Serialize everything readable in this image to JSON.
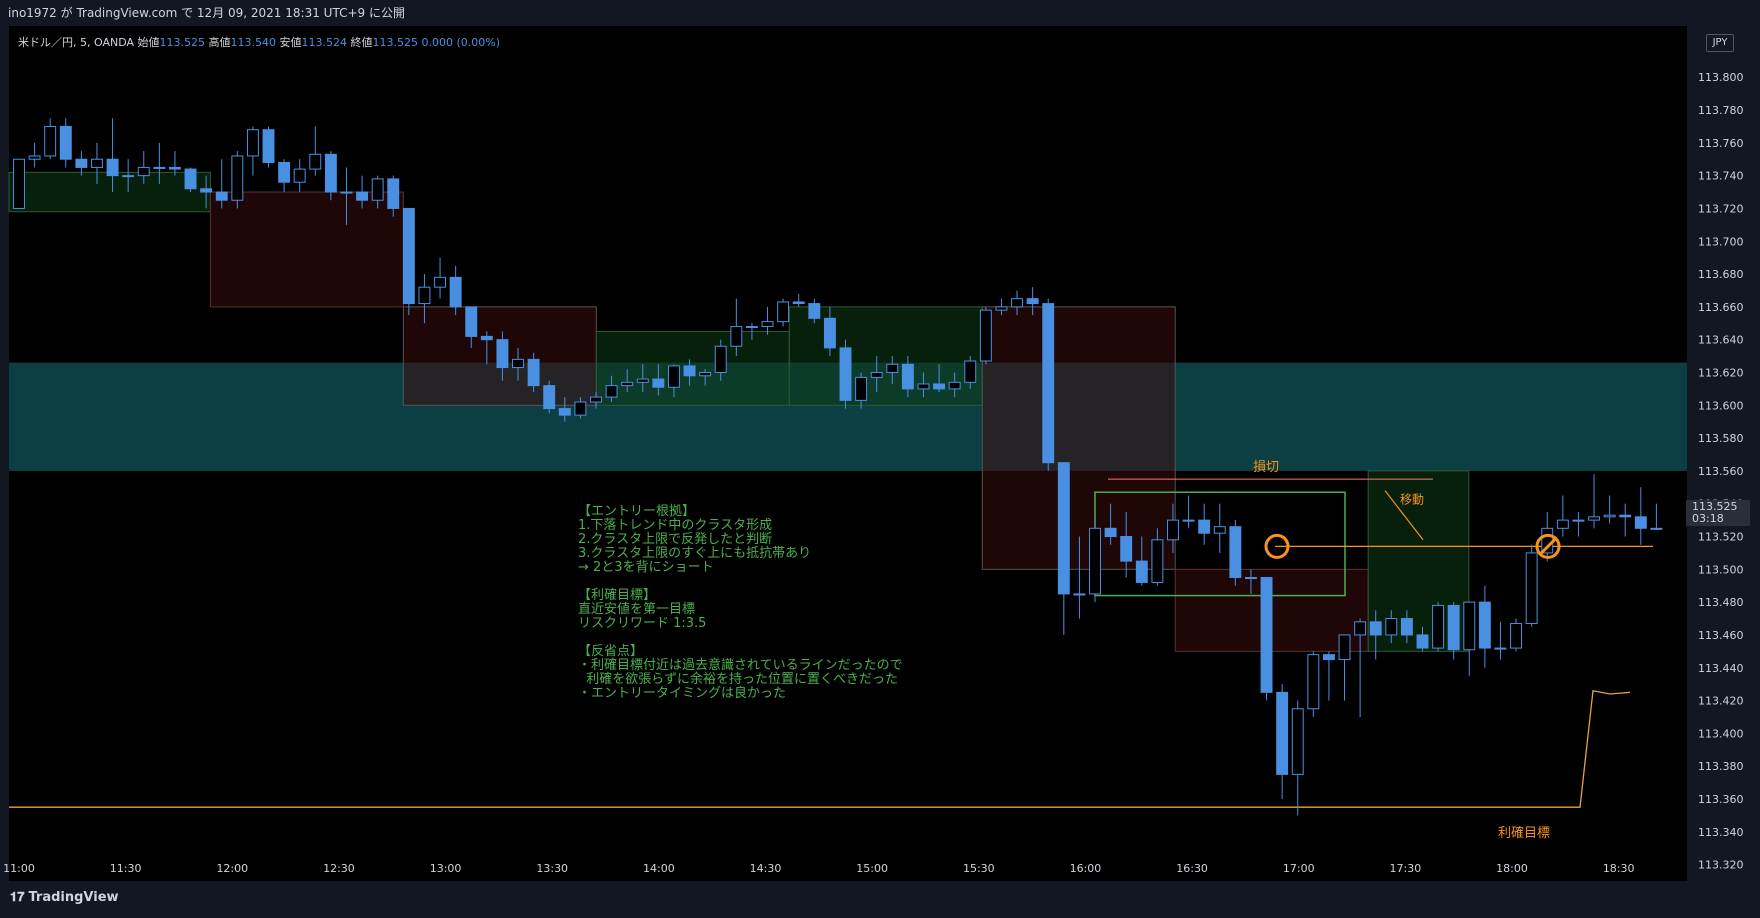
{
  "header": {
    "publish_info": "ino1972 が TradingView.com で 12月 09, 2021 18:31 UTC+9 に公開"
  },
  "legend": {
    "symbol": "米ドル／円, 5, OANDA",
    "open_label": "始値",
    "open": "113.525",
    "high_label": "高値",
    "high": "113.540",
    "low_label": "安値",
    "low": "113.524",
    "close_label": "終値",
    "close": "113.525",
    "change": "0.000 (0.00%)"
  },
  "currency": "JPY",
  "price_tag": {
    "price": "113.525",
    "countdown": "03:18"
  },
  "annotations": {
    "stop_loss": "損切",
    "move": "移動",
    "take_profit": "利確目標",
    "note_lines": [
      "【エントリー根拠】",
      "1.下落トレンド中のクラスタ形成",
      "2.クラスタ上限で反発したと判断",
      "3.クラスタ上限のすぐ上にも抵抗帯あり",
      "→ 2と3を背にショート",
      "",
      "【利確目標】",
      "直近安値を第一目標",
      "リスクリワード 1:3.5",
      "",
      "【反省点】",
      "・利確目標付近は過去意識されているラインだったので",
      "  利確を欲張らずに余裕を持った位置に置くべきだった",
      "・エントリータイミングは良かった"
    ]
  },
  "footer": {
    "brand": "TradingView"
  },
  "colors": {
    "up": "#000000",
    "down": "#4a90e2",
    "wick": "#4a90e2",
    "zone": "#0e4a4f",
    "take_profit_line": "#e8a23a",
    "orange": "#f7931a",
    "green_box": "#4caf50",
    "note": "#4caf50"
  },
  "chart_data": {
    "type": "candlestick",
    "symbol": "米ドル／円, 5, OANDA",
    "interval_minutes": 5,
    "y_axis": {
      "range": [
        113.31,
        113.83
      ],
      "ticks": [
        "113.800",
        "113.780",
        "113.760",
        "113.740",
        "113.720",
        "113.700",
        "113.680",
        "113.660",
        "113.640",
        "113.620",
        "113.600",
        "113.580",
        "113.560",
        "113.540",
        "113.520",
        "113.500",
        "113.480",
        "113.460",
        "113.440",
        "113.420",
        "113.400",
        "113.380",
        "113.360",
        "113.340",
        "113.320"
      ]
    },
    "x_axis": {
      "ticks": [
        "11:00",
        "11:30",
        "12:00",
        "12:30",
        "13:00",
        "13:30",
        "14:00",
        "14:30",
        "15:00",
        "15:30",
        "16:00",
        "16:30",
        "17:00",
        "17:30",
        "18:00",
        "18:30"
      ]
    },
    "candles": [
      {
        "o": 113.72,
        "h": 113.75,
        "l": 113.72,
        "c": 113.75
      },
      {
        "o": 113.75,
        "h": 113.76,
        "l": 113.745,
        "c": 113.752
      },
      {
        "o": 113.752,
        "h": 113.775,
        "l": 113.75,
        "c": 113.77
      },
      {
        "o": 113.77,
        "h": 113.775,
        "l": 113.745,
        "c": 113.75
      },
      {
        "o": 113.75,
        "h": 113.755,
        "l": 113.74,
        "c": 113.745
      },
      {
        "o": 113.745,
        "h": 113.76,
        "l": 113.735,
        "c": 113.75
      },
      {
        "o": 113.75,
        "h": 113.775,
        "l": 113.73,
        "c": 113.74
      },
      {
        "o": 113.74,
        "h": 113.75,
        "l": 113.73,
        "c": 113.74
      },
      {
        "o": 113.74,
        "h": 113.755,
        "l": 113.735,
        "c": 113.745
      },
      {
        "o": 113.745,
        "h": 113.76,
        "l": 113.735,
        "c": 113.745
      },
      {
        "o": 113.745,
        "h": 113.755,
        "l": 113.74,
        "c": 113.744
      },
      {
        "o": 113.744,
        "h": 113.745,
        "l": 113.73,
        "c": 113.732
      },
      {
        "o": 113.732,
        "h": 113.74,
        "l": 113.72,
        "c": 113.73
      },
      {
        "o": 113.73,
        "h": 113.75,
        "l": 113.72,
        "c": 113.725
      },
      {
        "o": 113.725,
        "h": 113.755,
        "l": 113.72,
        "c": 113.752
      },
      {
        "o": 113.752,
        "h": 113.77,
        "l": 113.74,
        "c": 113.768
      },
      {
        "o": 113.768,
        "h": 113.77,
        "l": 113.745,
        "c": 113.748
      },
      {
        "o": 113.748,
        "h": 113.75,
        "l": 113.73,
        "c": 113.736
      },
      {
        "o": 113.736,
        "h": 113.75,
        "l": 113.73,
        "c": 113.744
      },
      {
        "o": 113.744,
        "h": 113.77,
        "l": 113.74,
        "c": 113.753
      },
      {
        "o": 113.753,
        "h": 113.755,
        "l": 113.725,
        "c": 113.73
      },
      {
        "o": 113.73,
        "h": 113.745,
        "l": 113.71,
        "c": 113.73
      },
      {
        "o": 113.73,
        "h": 113.74,
        "l": 113.72,
        "c": 113.725
      },
      {
        "o": 113.725,
        "h": 113.74,
        "l": 113.72,
        "c": 113.738
      },
      {
        "o": 113.738,
        "h": 113.74,
        "l": 113.715,
        "c": 113.72
      },
      {
        "o": 113.72,
        "h": 113.72,
        "l": 113.655,
        "c": 113.662
      },
      {
        "o": 113.662,
        "h": 113.68,
        "l": 113.65,
        "c": 113.672
      },
      {
        "o": 113.672,
        "h": 113.69,
        "l": 113.665,
        "c": 113.678
      },
      {
        "o": 113.678,
        "h": 113.685,
        "l": 113.655,
        "c": 113.66
      },
      {
        "o": 113.66,
        "h": 113.66,
        "l": 113.635,
        "c": 113.642
      },
      {
        "o": 113.642,
        "h": 113.645,
        "l": 113.625,
        "c": 113.64
      },
      {
        "o": 113.64,
        "h": 113.645,
        "l": 113.615,
        "c": 113.623
      },
      {
        "o": 113.623,
        "h": 113.635,
        "l": 113.615,
        "c": 113.628
      },
      {
        "o": 113.628,
        "h": 113.632,
        "l": 113.608,
        "c": 113.612
      },
      {
        "o": 113.612,
        "h": 113.615,
        "l": 113.595,
        "c": 113.598
      },
      {
        "o": 113.598,
        "h": 113.605,
        "l": 113.59,
        "c": 113.594
      },
      {
        "o": 113.594,
        "h": 113.605,
        "l": 113.592,
        "c": 113.602
      },
      {
        "o": 113.602,
        "h": 113.608,
        "l": 113.598,
        "c": 113.605
      },
      {
        "o": 113.605,
        "h": 113.618,
        "l": 113.602,
        "c": 113.612
      },
      {
        "o": 113.612,
        "h": 113.622,
        "l": 113.608,
        "c": 113.614
      },
      {
        "o": 113.614,
        "h": 113.625,
        "l": 113.608,
        "c": 113.616
      },
      {
        "o": 113.616,
        "h": 113.625,
        "l": 113.606,
        "c": 113.611
      },
      {
        "o": 113.611,
        "h": 113.625,
        "l": 113.605,
        "c": 113.624
      },
      {
        "o": 113.624,
        "h": 113.628,
        "l": 113.612,
        "c": 113.618
      },
      {
        "o": 113.618,
        "h": 113.622,
        "l": 113.612,
        "c": 113.62
      },
      {
        "o": 113.62,
        "h": 113.64,
        "l": 113.615,
        "c": 113.636
      },
      {
        "o": 113.636,
        "h": 113.665,
        "l": 113.63,
        "c": 113.648
      },
      {
        "o": 113.648,
        "h": 113.65,
        "l": 113.64,
        "c": 113.648
      },
      {
        "o": 113.648,
        "h": 113.66,
        "l": 113.643,
        "c": 113.651
      },
      {
        "o": 113.651,
        "h": 113.665,
        "l": 113.648,
        "c": 113.663
      },
      {
        "o": 113.663,
        "h": 113.668,
        "l": 113.66,
        "c": 113.662
      },
      {
        "o": 113.662,
        "h": 113.665,
        "l": 113.65,
        "c": 113.653
      },
      {
        "o": 113.653,
        "h": 113.66,
        "l": 113.63,
        "c": 113.635
      },
      {
        "o": 113.635,
        "h": 113.64,
        "l": 113.598,
        "c": 113.603
      },
      {
        "o": 113.603,
        "h": 113.62,
        "l": 113.598,
        "c": 113.617
      },
      {
        "o": 113.617,
        "h": 113.63,
        "l": 113.608,
        "c": 113.62
      },
      {
        "o": 113.62,
        "h": 113.63,
        "l": 113.613,
        "c": 113.625
      },
      {
        "o": 113.625,
        "h": 113.63,
        "l": 113.605,
        "c": 113.61
      },
      {
        "o": 113.61,
        "h": 113.62,
        "l": 113.605,
        "c": 113.613
      },
      {
        "o": 113.613,
        "h": 113.625,
        "l": 113.608,
        "c": 113.61
      },
      {
        "o": 113.61,
        "h": 113.62,
        "l": 113.605,
        "c": 113.614
      },
      {
        "o": 113.614,
        "h": 113.63,
        "l": 113.61,
        "c": 113.627
      },
      {
        "o": 113.627,
        "h": 113.66,
        "l": 113.625,
        "c": 113.658
      },
      {
        "o": 113.658,
        "h": 113.665,
        "l": 113.655,
        "c": 113.66
      },
      {
        "o": 113.66,
        "h": 113.67,
        "l": 113.655,
        "c": 113.665
      },
      {
        "o": 113.665,
        "h": 113.672,
        "l": 113.655,
        "c": 113.662
      },
      {
        "o": 113.662,
        "h": 113.665,
        "l": 113.56,
        "c": 113.565
      },
      {
        "o": 113.565,
        "h": 113.565,
        "l": 113.46,
        "c": 113.485
      },
      {
        "o": 113.485,
        "h": 113.52,
        "l": 113.47,
        "c": 113.485
      },
      {
        "o": 113.485,
        "h": 113.53,
        "l": 113.48,
        "c": 113.525
      },
      {
        "o": 113.525,
        "h": 113.54,
        "l": 113.515,
        "c": 113.52
      },
      {
        "o": 113.52,
        "h": 113.535,
        "l": 113.495,
        "c": 113.505
      },
      {
        "o": 113.505,
        "h": 113.52,
        "l": 113.49,
        "c": 113.492
      },
      {
        "o": 113.492,
        "h": 113.525,
        "l": 113.49,
        "c": 113.518
      },
      {
        "o": 113.518,
        "h": 113.54,
        "l": 113.51,
        "c": 113.53
      },
      {
        "o": 113.53,
        "h": 113.545,
        "l": 113.525,
        "c": 113.53
      },
      {
        "o": 113.53,
        "h": 113.54,
        "l": 113.515,
        "c": 113.522
      },
      {
        "o": 113.522,
        "h": 113.54,
        "l": 113.51,
        "c": 113.526
      },
      {
        "o": 113.526,
        "h": 113.53,
        "l": 113.49,
        "c": 113.495
      },
      {
        "o": 113.495,
        "h": 113.5,
        "l": 113.485,
        "c": 113.495
      },
      {
        "o": 113.495,
        "h": 113.495,
        "l": 113.42,
        "c": 113.425
      },
      {
        "o": 113.425,
        "h": 113.43,
        "l": 113.36,
        "c": 113.375
      },
      {
        "o": 113.375,
        "h": 113.42,
        "l": 113.35,
        "c": 113.415
      },
      {
        "o": 113.415,
        "h": 113.45,
        "l": 113.41,
        "c": 113.448
      },
      {
        "o": 113.448,
        "h": 113.45,
        "l": 113.42,
        "c": 113.445
      },
      {
        "o": 113.445,
        "h": 113.46,
        "l": 113.42,
        "c": 113.46
      },
      {
        "o": 113.46,
        "h": 113.47,
        "l": 113.41,
        "c": 113.468
      },
      {
        "o": 113.468,
        "h": 113.475,
        "l": 113.445,
        "c": 113.46
      },
      {
        "o": 113.46,
        "h": 113.475,
        "l": 113.455,
        "c": 113.47
      },
      {
        "o": 113.47,
        "h": 113.475,
        "l": 113.455,
        "c": 113.46
      },
      {
        "o": 113.46,
        "h": 113.465,
        "l": 113.45,
        "c": 113.452
      },
      {
        "o": 113.452,
        "h": 113.48,
        "l": 113.45,
        "c": 113.478
      },
      {
        "o": 113.478,
        "h": 113.48,
        "l": 113.445,
        "c": 113.451
      },
      {
        "o": 113.451,
        "h": 113.48,
        "l": 113.435,
        "c": 113.48
      },
      {
        "o": 113.48,
        "h": 113.49,
        "l": 113.44,
        "c": 113.452
      },
      {
        "o": 113.452,
        "h": 113.468,
        "l": 113.445,
        "c": 113.452
      },
      {
        "o": 113.452,
        "h": 113.47,
        "l": 113.45,
        "c": 113.467
      },
      {
        "o": 113.467,
        "h": 113.515,
        "l": 113.465,
        "c": 113.51
      },
      {
        "o": 113.51,
        "h": 113.535,
        "l": 113.505,
        "c": 113.525
      },
      {
        "o": 113.525,
        "h": 113.545,
        "l": 113.52,
        "c": 113.53
      },
      {
        "o": 113.53,
        "h": 113.535,
        "l": 113.52,
        "c": 113.53
      },
      {
        "o": 113.53,
        "h": 113.558,
        "l": 113.525,
        "c": 113.532
      },
      {
        "o": 113.532,
        "h": 113.545,
        "l": 113.528,
        "c": 113.533
      },
      {
        "o": 113.533,
        "h": 113.54,
        "l": 113.52,
        "c": 113.532
      },
      {
        "o": 113.532,
        "h": 113.55,
        "l": 113.515,
        "c": 113.525
      },
      {
        "o": 113.525,
        "h": 113.54,
        "l": 113.524,
        "c": 113.525
      }
    ],
    "resistance_zone": [
      113.56,
      113.626
    ],
    "take_profit_level": 113.355,
    "lower_orange_level": 113.326
  }
}
